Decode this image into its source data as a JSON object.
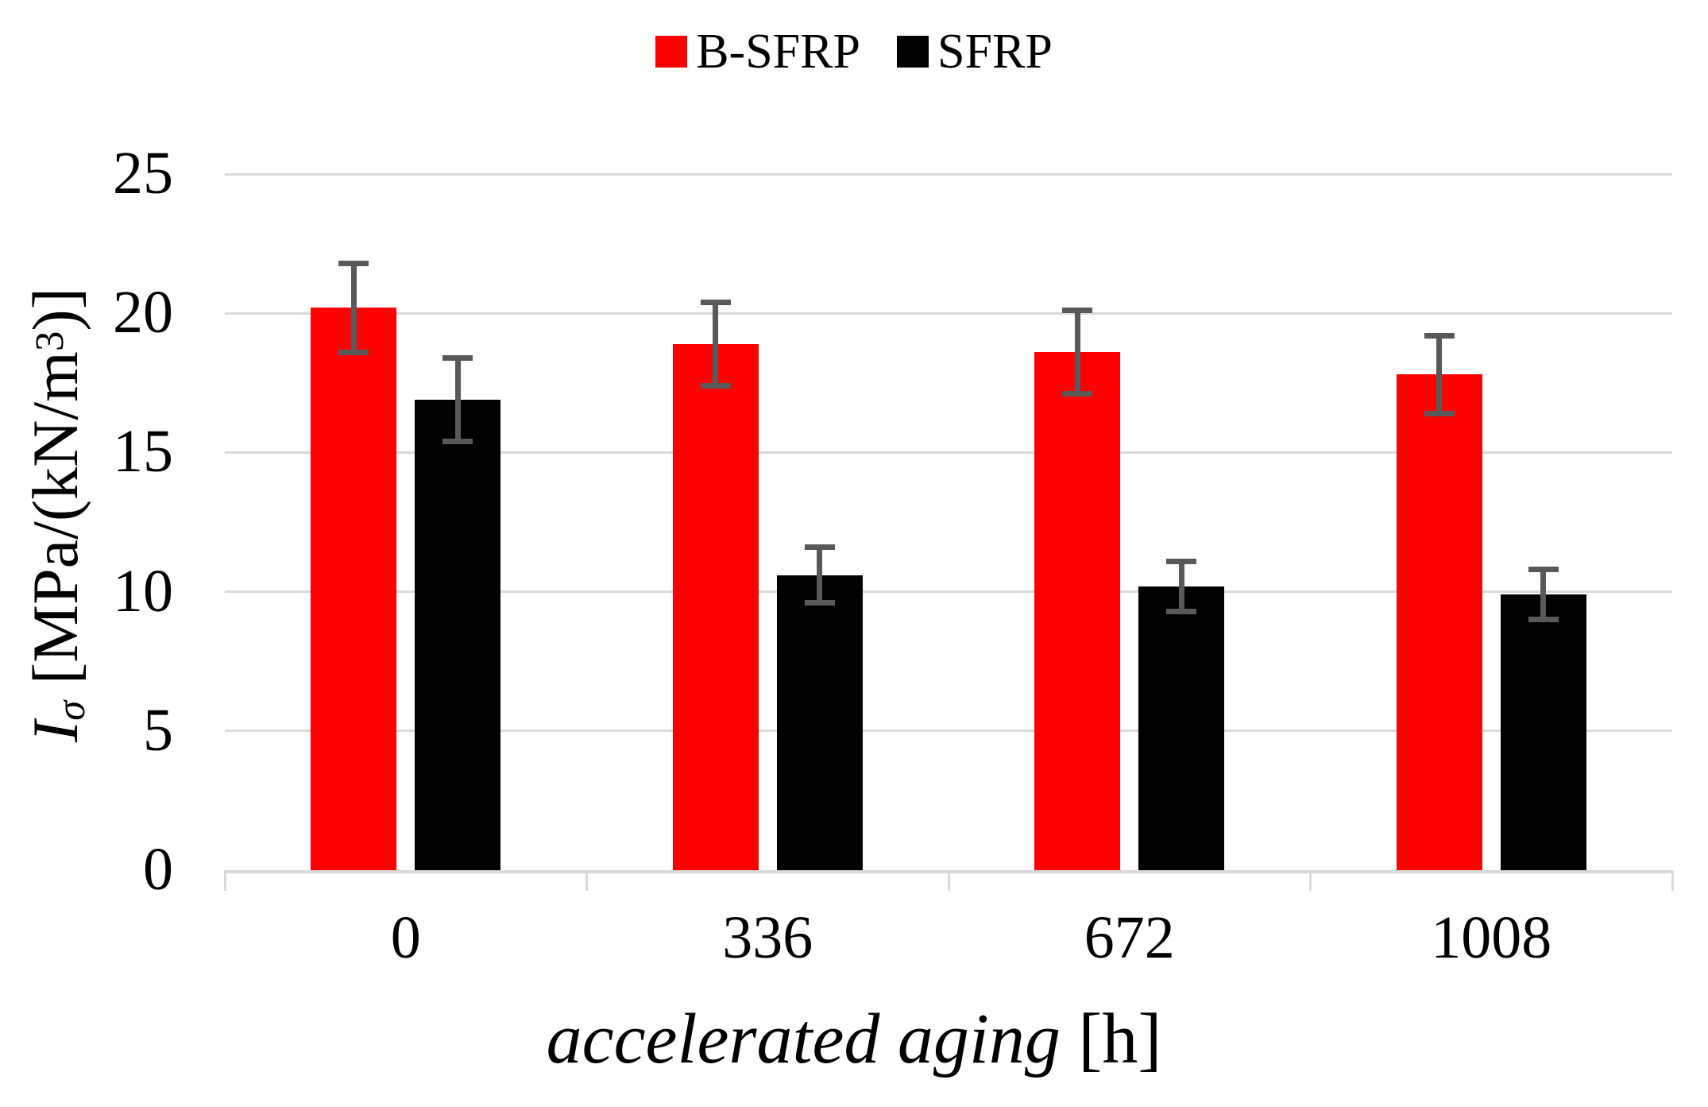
{
  "figure": {
    "background": "#ffffff"
  },
  "legend": {
    "items": [
      {
        "label": "B-SFRP",
        "color": "#ff0000"
      },
      {
        "label": "SFRP",
        "color": "#000000"
      }
    ]
  },
  "axes": {
    "y_title": {
      "symbol": "I",
      "subscript": "σ",
      "unit_prefix": " [MPa/(kN/m",
      "unit_sup": "3",
      "unit_suffix": ")]"
    },
    "x_title": {
      "italic": "accelerated aging",
      "unit": " [h]"
    }
  },
  "chart_data": {
    "type": "bar",
    "title": "",
    "categories": [
      "0",
      "336",
      "672",
      "1008"
    ],
    "series": [
      {
        "name": "B-SFRP",
        "color": "#ff0000",
        "values": [
          20.2,
          18.9,
          18.6,
          17.8
        ],
        "errors": [
          1.6,
          1.5,
          1.5,
          1.4
        ]
      },
      {
        "name": "SFRP",
        "color": "#000000",
        "values": [
          16.9,
          10.6,
          10.2,
          9.9
        ],
        "errors": [
          1.5,
          1.0,
          0.9,
          0.9
        ]
      }
    ],
    "xlabel": "accelerated aging [h]",
    "ylabel": "Iσ [MPa/(kN/m³)]",
    "ylim": [
      0,
      25
    ],
    "yticks": [
      0,
      5,
      10,
      15,
      20,
      25
    ],
    "grid": true,
    "grid_color": "#d9d9d9",
    "axis_line_color": "#d9d9d9",
    "error_bar_color": "#595959",
    "legend_position": "top-center"
  }
}
